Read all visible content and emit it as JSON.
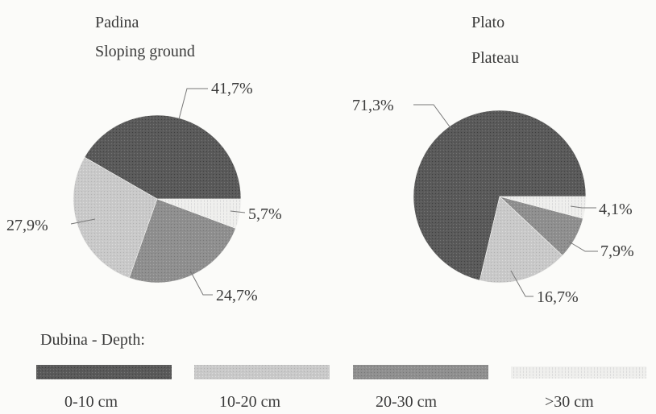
{
  "chart_data": [
    {
      "type": "pie",
      "title": "Padina",
      "subtitle": "Sloping ground",
      "categories": [
        "0-10 cm",
        "10-20 cm",
        "20-30 cm",
        ">30 cm"
      ],
      "values": [
        41.7,
        27.9,
        24.7,
        5.7
      ],
      "value_labels": [
        "41,7%",
        "27,9%",
        "24,7%",
        "5,7%"
      ]
    },
    {
      "type": "pie",
      "title": "Plato",
      "subtitle": "Plateau",
      "categories": [
        "0-10 cm",
        "10-20 cm",
        "20-30 cm",
        ">30 cm"
      ],
      "values": [
        71.3,
        16.7,
        7.9,
        4.1
      ],
      "value_labels": [
        "71,3%",
        "16,7%",
        "7,9%",
        "4,1%"
      ]
    }
  ],
  "legend": {
    "title": "Dubina -  Depth:",
    "items": [
      {
        "label": "0-10 cm",
        "color": "#5a5a5a"
      },
      {
        "label": "10-20 cm",
        "color": "#c9c9c9"
      },
      {
        "label": "20-30 cm",
        "color": "#8f8f8f"
      },
      {
        "label": ">30 cm",
        "color": "#ececea"
      }
    ]
  }
}
